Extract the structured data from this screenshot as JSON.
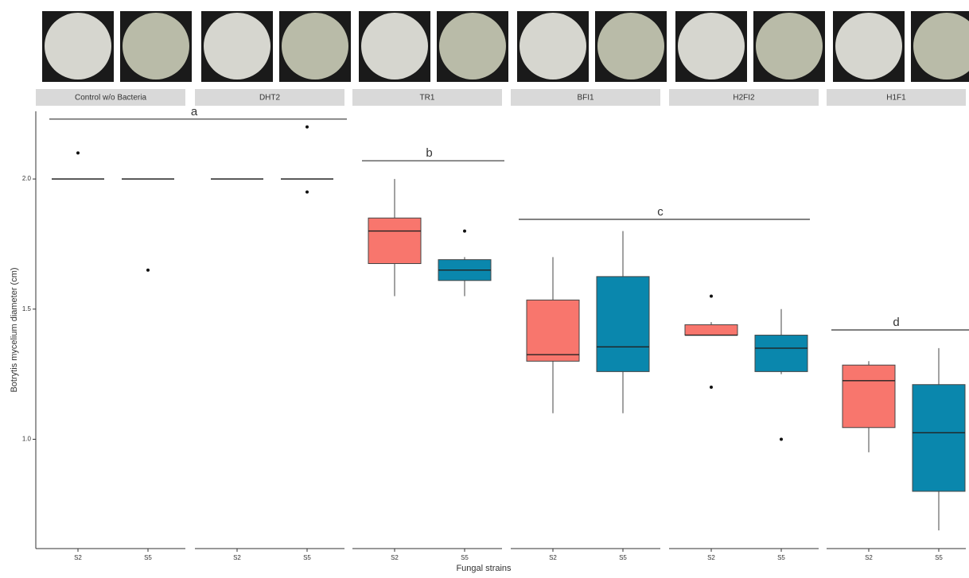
{
  "chart_data": {
    "type": "boxplot",
    "y_label": "Botrytis mycelium diameter (cm)",
    "x_label": "Fungal strains",
    "ylim": [
      0.58,
      2.26
    ],
    "yticks": [
      {
        "value": 1.0,
        "label": "1.0"
      },
      {
        "value": 1.5,
        "label": "1.5"
      },
      {
        "value": 2.0,
        "label": "2.0"
      }
    ],
    "facets": [
      {
        "name": "Control w/o Bacteria",
        "groups": [
          {
            "category": "S2",
            "color": "#f8766d",
            "box": {
              "min": 2.0,
              "q1": 2.0,
              "median": 2.0,
              "q3": 2.0,
              "max": 2.0
            },
            "outliers": [
              2.1
            ]
          },
          {
            "category": "S5",
            "color": "#0a87ad",
            "box": {
              "min": 2.0,
              "q1": 2.0,
              "median": 2.0,
              "q3": 2.0,
              "max": 2.0
            },
            "outliers": [
              1.65
            ]
          }
        ]
      },
      {
        "name": "DHT2",
        "groups": [
          {
            "category": "S2",
            "color": "#f8766d",
            "box": {
              "min": 2.0,
              "q1": 2.0,
              "median": 2.0,
              "q3": 2.0,
              "max": 2.0
            },
            "outliers": []
          },
          {
            "category": "S5",
            "color": "#0a87ad",
            "box": {
              "min": 2.0,
              "q1": 2.0,
              "median": 2.0,
              "q3": 2.0,
              "max": 2.0
            },
            "outliers": [
              2.2,
              1.95
            ]
          }
        ]
      },
      {
        "name": "TR1",
        "groups": [
          {
            "category": "S2",
            "color": "#f8766d",
            "box": {
              "min": 1.55,
              "q1": 1.675,
              "median": 1.8,
              "q3": 1.85,
              "max": 2.0
            },
            "outliers": []
          },
          {
            "category": "S5",
            "color": "#0a87ad",
            "box": {
              "min": 1.55,
              "q1": 1.61,
              "median": 1.65,
              "q3": 1.69,
              "max": 1.7
            },
            "outliers": [
              1.8
            ]
          }
        ]
      },
      {
        "name": "BFI1",
        "groups": [
          {
            "category": "S2",
            "color": "#f8766d",
            "box": {
              "min": 1.1,
              "q1": 1.3,
              "median": 1.325,
              "q3": 1.535,
              "max": 1.7
            },
            "outliers": []
          },
          {
            "category": "S5",
            "color": "#0a87ad",
            "box": {
              "min": 1.1,
              "q1": 1.26,
              "median": 1.355,
              "q3": 1.625,
              "max": 1.8
            },
            "outliers": []
          }
        ]
      },
      {
        "name": "H2FI2",
        "groups": [
          {
            "category": "S2",
            "color": "#f8766d",
            "box": {
              "min": 1.4,
              "q1": 1.4,
              "median": 1.4,
              "q3": 1.44,
              "max": 1.45
            },
            "outliers": [
              1.55,
              1.2
            ]
          },
          {
            "category": "S5",
            "color": "#0a87ad",
            "box": {
              "min": 1.25,
              "q1": 1.26,
              "median": 1.35,
              "q3": 1.4,
              "max": 1.5
            },
            "outliers": [
              1.0
            ]
          }
        ]
      },
      {
        "name": "H1F1",
        "groups": [
          {
            "category": "S2",
            "color": "#f8766d",
            "box": {
              "min": 0.95,
              "q1": 1.045,
              "median": 1.225,
              "q3": 1.285,
              "max": 1.3
            },
            "outliers": []
          },
          {
            "category": "S5",
            "color": "#0a87ad",
            "box": {
              "min": 0.65,
              "q1": 0.8,
              "median": 1.025,
              "q3": 1.21,
              "max": 1.35
            },
            "outliers": []
          }
        ]
      }
    ],
    "annotations": [
      {
        "text": "a",
        "y": 2.23
      },
      {
        "text": "b",
        "y": 2.07
      },
      {
        "text": "c",
        "y": 1.845
      },
      {
        "text": "d",
        "y": 1.42
      }
    ]
  }
}
